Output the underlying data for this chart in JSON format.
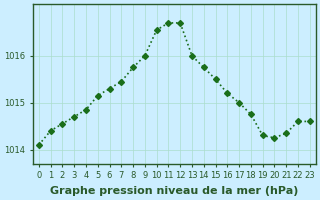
{
  "x": [
    0,
    1,
    2,
    3,
    4,
    5,
    6,
    7,
    8,
    9,
    10,
    11,
    12,
    13,
    14,
    15,
    16,
    17,
    18,
    19,
    20,
    21,
    22,
    23
  ],
  "y": [
    1014.1,
    1014.4,
    1014.55,
    1014.7,
    1014.85,
    1015.15,
    1015.3,
    1015.45,
    1015.75,
    1016.0,
    1016.55,
    1016.7,
    1016.7,
    1016.0,
    1015.75,
    1015.5,
    1015.2,
    1015.0,
    1014.75,
    1014.3,
    1014.25,
    1014.35,
    1014.6,
    1014.6
  ],
  "line_color": "#1a6e1a",
  "marker": "D",
  "marker_size": 3,
  "line_width": 1.2,
  "bg_color": "#cceeff",
  "grid_color": "#aaddcc",
  "xlabel": "Graphe pression niveau de la mer (hPa)",
  "xlabel_fontsize": 8,
  "ylim": [
    1013.7,
    1017.1
  ],
  "yticks": [
    1014,
    1015,
    1016
  ],
  "xticks": [
    0,
    1,
    2,
    3,
    4,
    5,
    6,
    7,
    8,
    9,
    10,
    11,
    12,
    13,
    14,
    15,
    16,
    17,
    18,
    19,
    20,
    21,
    22,
    23
  ],
  "tick_fontsize": 6,
  "axis_color": "#2a5a2a",
  "spine_color": "#2a5a2a"
}
